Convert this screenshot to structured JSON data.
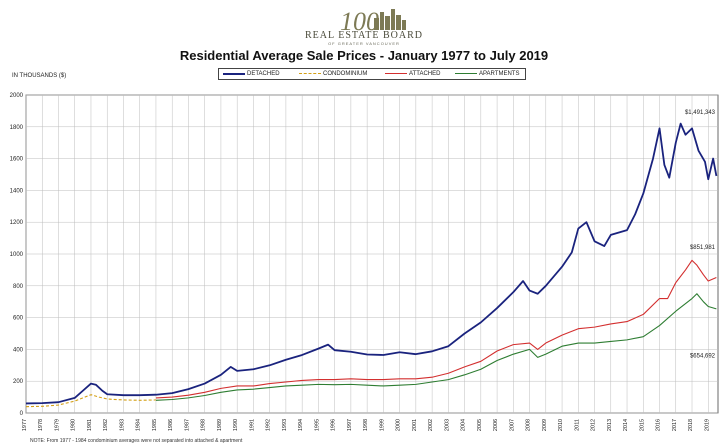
{
  "header": {
    "logo_number": "100",
    "logo_name": "REAL ESTATE BOARD",
    "logo_subtitle": "OF GREATER VANCOUVER"
  },
  "chart_data": {
    "type": "line",
    "title": "Residential Average Sale Prices  -  January 1977 to July 2019",
    "ylabel": "IN THOUSANDS ($)",
    "xlabel": "",
    "ylim": [
      0,
      2000
    ],
    "yticks": [
      0,
      200,
      400,
      600,
      800,
      1000,
      1200,
      1400,
      1600,
      1800,
      2000
    ],
    "xlim": [
      1977,
      2019.6
    ],
    "xticks": [
      "1977",
      "1978",
      "1979",
      "1980",
      "1981",
      "1982",
      "1983",
      "1984",
      "1985",
      "1986",
      "1987",
      "1988",
      "1989",
      "1990",
      "1991",
      "1992",
      "1993",
      "1994",
      "1995",
      "1996",
      "1997",
      "1998",
      "1999",
      "2000",
      "2001",
      "2002",
      "2003",
      "2004",
      "2005",
      "2006",
      "2007",
      "2008",
      "2009",
      "2010",
      "2011",
      "2012",
      "2013",
      "2014",
      "2015",
      "2016",
      "2017",
      "2018",
      "2019"
    ],
    "grid": true,
    "legend_position": "top-center",
    "series": [
      {
        "name": "DETACHED",
        "color": "#1a237e",
        "style": "solid",
        "end_label": "$1,491,343",
        "points": [
          [
            1977,
            60
          ],
          [
            1978,
            62
          ],
          [
            1979,
            68
          ],
          [
            1980,
            95
          ],
          [
            1980.5,
            140
          ],
          [
            1981,
            185
          ],
          [
            1981.3,
            178
          ],
          [
            1981.7,
            140
          ],
          [
            1982,
            118
          ],
          [
            1983,
            112
          ],
          [
            1984,
            112
          ],
          [
            1985,
            115
          ],
          [
            1986,
            125
          ],
          [
            1987,
            150
          ],
          [
            1988,
            185
          ],
          [
            1989,
            240
          ],
          [
            1989.6,
            290
          ],
          [
            1990,
            265
          ],
          [
            1991,
            275
          ],
          [
            1992,
            300
          ],
          [
            1993,
            335
          ],
          [
            1994,
            365
          ],
          [
            1995,
            405
          ],
          [
            1995.6,
            430
          ],
          [
            1996,
            395
          ],
          [
            1997,
            385
          ],
          [
            1998,
            368
          ],
          [
            1999,
            365
          ],
          [
            2000,
            382
          ],
          [
            2001,
            370
          ],
          [
            2002,
            388
          ],
          [
            2003,
            420
          ],
          [
            2004,
            500
          ],
          [
            2005,
            570
          ],
          [
            2006,
            660
          ],
          [
            2007,
            760
          ],
          [
            2007.6,
            830
          ],
          [
            2008,
            770
          ],
          [
            2008.5,
            750
          ],
          [
            2009,
            800
          ],
          [
            2010,
            920
          ],
          [
            2010.6,
            1010
          ],
          [
            2011,
            1160
          ],
          [
            2011.5,
            1200
          ],
          [
            2012,
            1080
          ],
          [
            2012.6,
            1050
          ],
          [
            2013,
            1120
          ],
          [
            2014,
            1150
          ],
          [
            2014.5,
            1250
          ],
          [
            2015,
            1380
          ],
          [
            2015.6,
            1600
          ],
          [
            2016,
            1790
          ],
          [
            2016.3,
            1560
          ],
          [
            2016.6,
            1480
          ],
          [
            2017,
            1700
          ],
          [
            2017.3,
            1820
          ],
          [
            2017.6,
            1750
          ],
          [
            2018,
            1790
          ],
          [
            2018.4,
            1650
          ],
          [
            2018.8,
            1580
          ],
          [
            2019,
            1470
          ],
          [
            2019.3,
            1600
          ],
          [
            2019.5,
            1491
          ]
        ]
      },
      {
        "name": "CONDOMINIUM",
        "color": "#d4a017",
        "style": "dashed",
        "points": [
          [
            1977,
            40
          ],
          [
            1978,
            42
          ],
          [
            1979,
            50
          ],
          [
            1980,
            75
          ],
          [
            1981,
            115
          ],
          [
            1981.5,
            100
          ],
          [
            1982,
            88
          ],
          [
            1983,
            82
          ],
          [
            1984,
            80
          ],
          [
            1985,
            82
          ]
        ]
      },
      {
        "name": "ATTACHED",
        "color": "#d32f2f",
        "style": "solid",
        "end_label": "$851,981",
        "points": [
          [
            1985,
            95
          ],
          [
            1986,
            100
          ],
          [
            1987,
            112
          ],
          [
            1988,
            130
          ],
          [
            1989,
            155
          ],
          [
            1990,
            170
          ],
          [
            1991,
            170
          ],
          [
            1992,
            185
          ],
          [
            1993,
            195
          ],
          [
            1994,
            205
          ],
          [
            1995,
            210
          ],
          [
            1996,
            210
          ],
          [
            1997,
            215
          ],
          [
            1998,
            210
          ],
          [
            1999,
            210
          ],
          [
            2000,
            215
          ],
          [
            2001,
            215
          ],
          [
            2002,
            225
          ],
          [
            2003,
            250
          ],
          [
            2004,
            290
          ],
          [
            2005,
            325
          ],
          [
            2006,
            390
          ],
          [
            2007,
            430
          ],
          [
            2008,
            440
          ],
          [
            2008.5,
            400
          ],
          [
            2009,
            440
          ],
          [
            2010,
            490
          ],
          [
            2011,
            530
          ],
          [
            2012,
            540
          ],
          [
            2013,
            560
          ],
          [
            2014,
            575
          ],
          [
            2015,
            620
          ],
          [
            2016,
            720
          ],
          [
            2016.5,
            720
          ],
          [
            2017,
            820
          ],
          [
            2017.6,
            900
          ],
          [
            2018,
            960
          ],
          [
            2018.3,
            930
          ],
          [
            2018.7,
            870
          ],
          [
            2019,
            830
          ],
          [
            2019.5,
            852
          ]
        ]
      },
      {
        "name": "APARTMENTS",
        "color": "#2e7d32",
        "style": "solid",
        "end_label": "$654,692",
        "points": [
          [
            1985,
            80
          ],
          [
            1986,
            85
          ],
          [
            1987,
            95
          ],
          [
            1988,
            110
          ],
          [
            1989,
            130
          ],
          [
            1990,
            145
          ],
          [
            1991,
            150
          ],
          [
            1992,
            160
          ],
          [
            1993,
            170
          ],
          [
            1994,
            175
          ],
          [
            1995,
            180
          ],
          [
            1996,
            178
          ],
          [
            1997,
            180
          ],
          [
            1998,
            175
          ],
          [
            1999,
            170
          ],
          [
            2000,
            175
          ],
          [
            2001,
            180
          ],
          [
            2002,
            195
          ],
          [
            2003,
            210
          ],
          [
            2004,
            240
          ],
          [
            2005,
            275
          ],
          [
            2006,
            330
          ],
          [
            2007,
            370
          ],
          [
            2008,
            400
          ],
          [
            2008.5,
            350
          ],
          [
            2009,
            370
          ],
          [
            2010,
            420
          ],
          [
            2011,
            440
          ],
          [
            2012,
            440
          ],
          [
            2013,
            450
          ],
          [
            2014,
            460
          ],
          [
            2015,
            480
          ],
          [
            2016,
            550
          ],
          [
            2017,
            640
          ],
          [
            2018,
            720
          ],
          [
            2018.3,
            750
          ],
          [
            2018.7,
            700
          ],
          [
            2019,
            670
          ],
          [
            2019.5,
            655
          ]
        ]
      }
    ]
  },
  "footnote": "NOTE: From 1977 - 1984 condominium averages were not separated into attached & apartment"
}
